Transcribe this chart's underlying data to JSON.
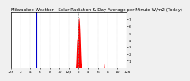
{
  "title": "Milwaukee Weather - Solar Radiation & Day Average per Minute W/m2 (Today)",
  "bg_color": "#f0f0f0",
  "plot_bg": "#ffffff",
  "bar_color": "#ff0000",
  "line_color": "#0000cc",
  "dashed_line_color": "#888888",
  "x_total": 1440,
  "current_time_x": 315,
  "dashed_lines": [
    780,
    840
  ],
  "solar_data": [
    0,
    0,
    0,
    0,
    0,
    0,
    0,
    0,
    0,
    0,
    0,
    0,
    0,
    0,
    0,
    0,
    0,
    0,
    0,
    0,
    0,
    0,
    0,
    0,
    0,
    0,
    0,
    0,
    0,
    0,
    0,
    0,
    0,
    0,
    0,
    0,
    0,
    0,
    0,
    0,
    0,
    0,
    0,
    0,
    0,
    0,
    0,
    0,
    0,
    0,
    0,
    0,
    0,
    0,
    0,
    0,
    0,
    0,
    0,
    0,
    0,
    0,
    0,
    0,
    0,
    0,
    0,
    0,
    0,
    0,
    0,
    0,
    0,
    0,
    0,
    0,
    0,
    0,
    0,
    0,
    0,
    0,
    0,
    0,
    0,
    0,
    0,
    0,
    0,
    0,
    0,
    0,
    0,
    0,
    0,
    0,
    0,
    0,
    0,
    0,
    0,
    0,
    0,
    0,
    0,
    0,
    0,
    0,
    0,
    0,
    0,
    0,
    0,
    0,
    0,
    0,
    0,
    0,
    0,
    0,
    0,
    0,
    0,
    0,
    0,
    0,
    0,
    0,
    0,
    0,
    0,
    0,
    0,
    0,
    0,
    0,
    0,
    0,
    0,
    0,
    0,
    0,
    0,
    0,
    0,
    0,
    0,
    0,
    0,
    0,
    0,
    0,
    0,
    0,
    0,
    0,
    0,
    0,
    0,
    0,
    0,
    0,
    0,
    0,
    0,
    0,
    0,
    0,
    0,
    0,
    0,
    0,
    0,
    0,
    0,
    0,
    0,
    0,
    0,
    0,
    0,
    0,
    0,
    0,
    0,
    0,
    0,
    0,
    0,
    0,
    0,
    0,
    0,
    0,
    0,
    0,
    0,
    0,
    0,
    0,
    0,
    0,
    0,
    0,
    0,
    0,
    0,
    0,
    0,
    0,
    0,
    0,
    0,
    0,
    0,
    0,
    0,
    0,
    0,
    0,
    0,
    0,
    0,
    0,
    0,
    0,
    0,
    0,
    0,
    0,
    0,
    0,
    0,
    0,
    0,
    0,
    0,
    0,
    0,
    0,
    0,
    0,
    0,
    0,
    0,
    0,
    0,
    0,
    0,
    0,
    0,
    0,
    0,
    0,
    0,
    0,
    0,
    0,
    0,
    0,
    0,
    0,
    0,
    0,
    0,
    0,
    0,
    0,
    0,
    0,
    0,
    0,
    0,
    0,
    0,
    0,
    0,
    0,
    0,
    0,
    0,
    0,
    0,
    0,
    0,
    0,
    0,
    0,
    0,
    0,
    0,
    0,
    0,
    0,
    0,
    0,
    0,
    0,
    0,
    0,
    0,
    0,
    0,
    0,
    0,
    0,
    0,
    0,
    0,
    0,
    0,
    0,
    0,
    0,
    0,
    0,
    0,
    0,
    0,
    0,
    0,
    0,
    0,
    0,
    0,
    0,
    0,
    0,
    0,
    0,
    0,
    0,
    0,
    0,
    0,
    0,
    0,
    0,
    0,
    0,
    0,
    0,
    0,
    0,
    0,
    0,
    0,
    0,
    0,
    0,
    0,
    0,
    0,
    0,
    0,
    0,
    0,
    0,
    0,
    0,
    0,
    0,
    0,
    0,
    0,
    0,
    0,
    0,
    0,
    0,
    0,
    0,
    0,
    0,
    0,
    0,
    0,
    0,
    0,
    0,
    0,
    0,
    0,
    0,
    0,
    0,
    0,
    0,
    0,
    0,
    0,
    0,
    0,
    0,
    0,
    0,
    0,
    0,
    0,
    0,
    0,
    0,
    0,
    0,
    0,
    0,
    0,
    0,
    0,
    0,
    0,
    0,
    0,
    0,
    0,
    0,
    0,
    0,
    0,
    0,
    0,
    0,
    0,
    0,
    0,
    0,
    0,
    0,
    0,
    0,
    0,
    0,
    0,
    0,
    0,
    0,
    0,
    0,
    0,
    0,
    0,
    0,
    0,
    0,
    0,
    0,
    0,
    0,
    0,
    0,
    0,
    0,
    0,
    0,
    0,
    0,
    0,
    0,
    0,
    0,
    0,
    0,
    0,
    0,
    0,
    0,
    0,
    0,
    0,
    0,
    0,
    0,
    0,
    0,
    0,
    0,
    0,
    0,
    0,
    0,
    0,
    0,
    0,
    0,
    0,
    0,
    0,
    0,
    0,
    0,
    0,
    0,
    0,
    0,
    0,
    0,
    0,
    0,
    0,
    0,
    0,
    0,
    0,
    0,
    0,
    0,
    0,
    0,
    0,
    0,
    0,
    0,
    0,
    0,
    0,
    0,
    0,
    0,
    0,
    0,
    0,
    0,
    0,
    0,
    0,
    0,
    0,
    0,
    0,
    0,
    0,
    0,
    0,
    0,
    0,
    0,
    0,
    0,
    0,
    0,
    0,
    0,
    0,
    0,
    0,
    0,
    0,
    0,
    0,
    0,
    0,
    0,
    0,
    0,
    0,
    0,
    0,
    0,
    0,
    0,
    0,
    0,
    0,
    0,
    0,
    0,
    0,
    0,
    0,
    0,
    0,
    0,
    0,
    0,
    0,
    0,
    0,
    0,
    0,
    0,
    0,
    0,
    0,
    0,
    0,
    0,
    0,
    0,
    0,
    0,
    0,
    0,
    0,
    0,
    0,
    0,
    0,
    0,
    0,
    0,
    0,
    0,
    0,
    0,
    0,
    0,
    0,
    0,
    0,
    0,
    0,
    0,
    0,
    0,
    0,
    0,
    0,
    0,
    0,
    0,
    0,
    0,
    0,
    0,
    0,
    0,
    0,
    0,
    0,
    0,
    0,
    0,
    0,
    0,
    0,
    0,
    0,
    0,
    0,
    0,
    0,
    0,
    0,
    0,
    0,
    0,
    0,
    0,
    0,
    0,
    0,
    0,
    0,
    0,
    0,
    0,
    0,
    0,
    0,
    0,
    0,
    0,
    0,
    0,
    0,
    0,
    0,
    0,
    0,
    0,
    0,
    0,
    0,
    0,
    0,
    0,
    0,
    0,
    0,
    0,
    0,
    0,
    0,
    0,
    0,
    0,
    0,
    0,
    0,
    0,
    0,
    0,
    0,
    0,
    0,
    0,
    0,
    0,
    0,
    0,
    0,
    0,
    0,
    0,
    0,
    0,
    0,
    0,
    0,
    0,
    0,
    0,
    0,
    0,
    0,
    0,
    0,
    0,
    0,
    0,
    0,
    0,
    0,
    0,
    0,
    0,
    0,
    0,
    0,
    0,
    0,
    0,
    0,
    0,
    0,
    0,
    0,
    0,
    0,
    0,
    0,
    0,
    0,
    0,
    0,
    0,
    0,
    0,
    0,
    0,
    0,
    0,
    0,
    0,
    0,
    0,
    0,
    0,
    0,
    0,
    0,
    0,
    0,
    0,
    0,
    0,
    0,
    0,
    0,
    0,
    0,
    0,
    0,
    0,
    0,
    0,
    0,
    0,
    0,
    0,
    0,
    0,
    0,
    0,
    0,
    0,
    0,
    0,
    0,
    0,
    0,
    0,
    0,
    0,
    0,
    0,
    0,
    0,
    0,
    0,
    2,
    5,
    10,
    18,
    28,
    42,
    60,
    82,
    108,
    138,
    170,
    204,
    238,
    270,
    300,
    328,
    352,
    372,
    388,
    400,
    410,
    418,
    424,
    430,
    436,
    444,
    454,
    468,
    485,
    505,
    528,
    552,
    576,
    600,
    622,
    642,
    660,
    676,
    688,
    698,
    706,
    712,
    716,
    718,
    716,
    712,
    706,
    698,
    686,
    672,
    656,
    638,
    618,
    596,
    572,
    546,
    518,
    488,
    456,
    422,
    386,
    348,
    308,
    268,
    230,
    196,
    164,
    136,
    112,
    90,
    72,
    56,
    44,
    34,
    26,
    20,
    16,
    14,
    12,
    10,
    8,
    6,
    4,
    2,
    0,
    0,
    0,
    0,
    0,
    0,
    0,
    0,
    0,
    0,
    0,
    0,
    0,
    0,
    0,
    0,
    0,
    0,
    0,
    0,
    0,
    0,
    0,
    0,
    0,
    0,
    0,
    0,
    0,
    0,
    0,
    0,
    0,
    0,
    0,
    0,
    0,
    0,
    0,
    0,
    0,
    0,
    0,
    0,
    0,
    0,
    0,
    0,
    0,
    0,
    0,
    0,
    0,
    0,
    0,
    0,
    0,
    0,
    0,
    0,
    0,
    0,
    0,
    0,
    0,
    0,
    0,
    0,
    0,
    0,
    0,
    0,
    0,
    0,
    0,
    0,
    0,
    0,
    0,
    0,
    0,
    0,
    0,
    0,
    0,
    0,
    0,
    0,
    0,
    0,
    0,
    0,
    0,
    0,
    0,
    0,
    0,
    0,
    0,
    0,
    0,
    0,
    0,
    0,
    0,
    0,
    0,
    0,
    0,
    0,
    0,
    0,
    0,
    0,
    0,
    0,
    0,
    0,
    0,
    0,
    0,
    0,
    0,
    0,
    0,
    0,
    0,
    0,
    0,
    0,
    0,
    0,
    0,
    0,
    0,
    0,
    0,
    0,
    0,
    0,
    0,
    0,
    0,
    0,
    0,
    0,
    0,
    0,
    0,
    0,
    0,
    0,
    0,
    0,
    0,
    0,
    0,
    0,
    0,
    0,
    0,
    0,
    0,
    0,
    0,
    0,
    0,
    0,
    0,
    0,
    0,
    0,
    0,
    0,
    0,
    0,
    0,
    0,
    0,
    0,
    0,
    0,
    0,
    0,
    0,
    0,
    0,
    0,
    0,
    0,
    0,
    0,
    0,
    0,
    0,
    0,
    0,
    0,
    0,
    0,
    0,
    0,
    0,
    0,
    0,
    0,
    0,
    0,
    0,
    0,
    0,
    0,
    0,
    0,
    0,
    0,
    0,
    0,
    0,
    0,
    0,
    0,
    0,
    0,
    0,
    0,
    0,
    0,
    0,
    0,
    0,
    0,
    0,
    0,
    0,
    0,
    0,
    0,
    0,
    0,
    0,
    0,
    0,
    0,
    0,
    0,
    0,
    0,
    0,
    0,
    0,
    0,
    0,
    0,
    0,
    0,
    0,
    0,
    0,
    0,
    0,
    0,
    0,
    0,
    0,
    0,
    30,
    50,
    70,
    40,
    20,
    10,
    5,
    2,
    0,
    0,
    0,
    0,
    0,
    0,
    0,
    0,
    0,
    0,
    0,
    0,
    0,
    0,
    0,
    0,
    0,
    0,
    0,
    0,
    0,
    0,
    0,
    0,
    0,
    0,
    0,
    0,
    0,
    0,
    0,
    0,
    0,
    0,
    0,
    0,
    0,
    0,
    0,
    0,
    0,
    0,
    0,
    0,
    0,
    0,
    0,
    0,
    0,
    0,
    0,
    0,
    0,
    0,
    0,
    0,
    0,
    0,
    0,
    0,
    0,
    0,
    0,
    0,
    0,
    0,
    0,
    0,
    0,
    0,
    0,
    0,
    0,
    0,
    0,
    0,
    0,
    0,
    0,
    0,
    0,
    0,
    0,
    0,
    0,
    0,
    0,
    0,
    0,
    0,
    0,
    0,
    0,
    0,
    0,
    0,
    0,
    0,
    0,
    0,
    0,
    0,
    0,
    0,
    0,
    0,
    0,
    0,
    0,
    0,
    0,
    0,
    0,
    0,
    0,
    0,
    0,
    0,
    0,
    0,
    0,
    0,
    0,
    0,
    0,
    0,
    0,
    0,
    0,
    0,
    0,
    0,
    0,
    0,
    0,
    0,
    0,
    0,
    0,
    0,
    0,
    0,
    0,
    0,
    0,
    0,
    0,
    0,
    0,
    0,
    0,
    0,
    0,
    0,
    0,
    0,
    0,
    0,
    0,
    0,
    0,
    0,
    0,
    0,
    0,
    0,
    0,
    0,
    0,
    0,
    0,
    0,
    0,
    0,
    0,
    0,
    0,
    0,
    0,
    0,
    0,
    0,
    0,
    0,
    0,
    0,
    0,
    0,
    0,
    0,
    0,
    0,
    0,
    0,
    0,
    0,
    0,
    0,
    0,
    0,
    0,
    0,
    0,
    0,
    0,
    0,
    0,
    0,
    0,
    0,
    0,
    0,
    0,
    0,
    0,
    0,
    0,
    0,
    0,
    0,
    0,
    0,
    0,
    0,
    0,
    0,
    0,
    0,
    0,
    0,
    0,
    0,
    0,
    0,
    0,
    0,
    0,
    0,
    0,
    0,
    0,
    0,
    0,
    0,
    0,
    0,
    0,
    0,
    0,
    0,
    0,
    0,
    0,
    0,
    0,
    0,
    0,
    0,
    0,
    0,
    0,
    0,
    0,
    0,
    0,
    0,
    0,
    0,
    0,
    0,
    0,
    0,
    0,
    0,
    0,
    0,
    0,
    0,
    0,
    0,
    0,
    0,
    0,
    0,
    0,
    0,
    0,
    0,
    0,
    0
  ],
  "yticks": [
    100,
    200,
    300,
    400,
    500,
    600,
    700
  ],
  "ytick_labels": [
    "1",
    "2",
    "3",
    "4",
    "5",
    "6",
    "7"
  ],
  "xticks": [
    0,
    120,
    240,
    360,
    480,
    600,
    720,
    840,
    960,
    1080,
    1200,
    1320,
    1440
  ],
  "xtick_labels": [
    "12a",
    "2",
    "4",
    "6",
    "8",
    "10",
    "12p",
    "2",
    "4",
    "6",
    "8",
    "10",
    "12a"
  ],
  "ylim": [
    0,
    800
  ],
  "title_fontsize": 4.0,
  "tick_fontsize": 3.2,
  "grid_color": "#aaaaaa",
  "border_color": "#000000"
}
